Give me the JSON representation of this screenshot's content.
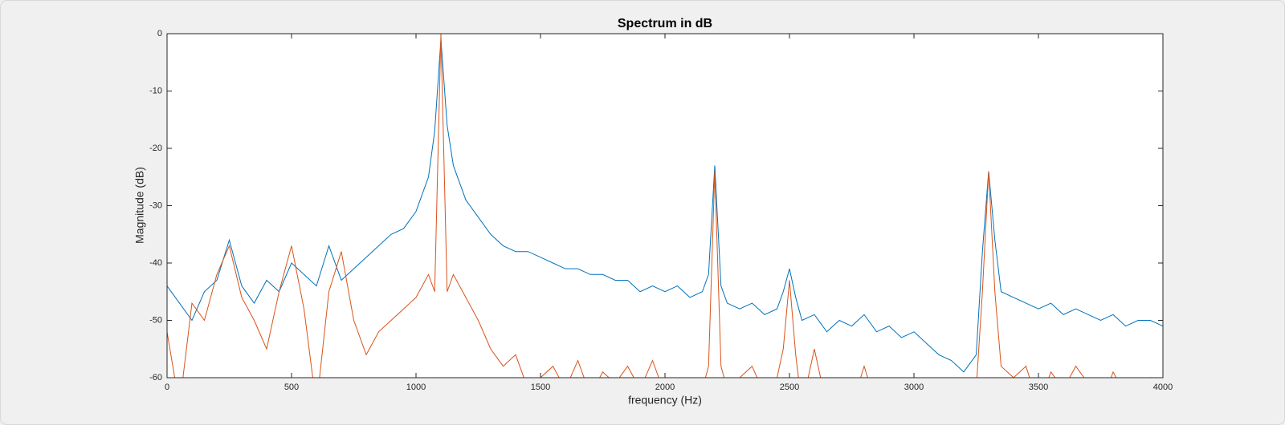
{
  "chart_data": {
    "type": "line",
    "title": "Spectrum in dB",
    "x_label": "frequency (Hz)",
    "y_label": "Magnitude (dB)",
    "x": [
      0,
      50,
      100,
      150,
      200,
      250,
      300,
      350,
      400,
      450,
      500,
      550,
      600,
      650,
      700,
      750,
      800,
      850,
      900,
      950,
      1000,
      1050,
      1075,
      1100,
      1125,
      1150,
      1200,
      1250,
      1300,
      1350,
      1400,
      1450,
      1500,
      1550,
      1600,
      1650,
      1700,
      1750,
      1800,
      1850,
      1900,
      1950,
      2000,
      2050,
      2100,
      2150,
      2175,
      2200,
      2225,
      2250,
      2300,
      2350,
      2400,
      2450,
      2475,
      2500,
      2525,
      2550,
      2600,
      2650,
      2700,
      2750,
      2800,
      2850,
      2900,
      2950,
      3000,
      3050,
      3100,
      3150,
      3200,
      3250,
      3275,
      3300,
      3325,
      3350,
      3400,
      3450,
      3500,
      3550,
      3600,
      3650,
      3700,
      3750,
      3800,
      3850,
      3900,
      3950,
      4000
    ],
    "series": [
      {
        "color": "#0072bd",
        "values": [
          -44,
          -47,
          -50,
          -45,
          -43,
          -36,
          -44,
          -47,
          -43,
          -45,
          -40,
          -42,
          -44,
          -37,
          -43,
          -41,
          -39,
          -37,
          -35,
          -34,
          -31,
          -25,
          -17,
          -1,
          -16,
          -23,
          -29,
          -32,
          -35,
          -37,
          -38,
          -38,
          -39,
          -40,
          -41,
          -41,
          -42,
          -42,
          -43,
          -43,
          -45,
          -44,
          -45,
          -44,
          -46,
          -45,
          -42,
          -23,
          -44,
          -47,
          -48,
          -47,
          -49,
          -48,
          -45,
          -41,
          -46,
          -50,
          -49,
          -52,
          -50,
          -51,
          -49,
          -52,
          -51,
          -53,
          -52,
          -54,
          -56,
          -57,
          -59,
          -56,
          -38,
          -24,
          -36,
          -45,
          -46,
          -47,
          -48,
          -47,
          -49,
          -48,
          -49,
          -50,
          -49,
          -51,
          -50,
          -50,
          -51
        ]
      },
      {
        "color": "#d95319",
        "values": [
          -52,
          -65,
          -47,
          -50,
          -42,
          -37,
          -46,
          -50,
          -55,
          -45,
          -37,
          -48,
          -65,
          -45,
          -38,
          -50,
          -56,
          -52,
          -50,
          -48,
          -46,
          -42,
          -45,
          0,
          -45,
          -42,
          -46,
          -50,
          -55,
          -58,
          -56,
          -62,
          -60,
          -58,
          -62,
          -57,
          -63,
          -59,
          -61,
          -58,
          -62,
          -57,
          -63,
          -65,
          -60,
          -62,
          -58,
          -24,
          -58,
          -62,
          -60,
          -58,
          -63,
          -60,
          -55,
          -43,
          -56,
          -65,
          -55,
          -65,
          -62,
          -65,
          -58,
          -65,
          -62,
          -65,
          -65,
          -62,
          -65,
          -65,
          -65,
          -62,
          -45,
          -24,
          -45,
          -58,
          -60,
          -58,
          -65,
          -59,
          -62,
          -58,
          -61,
          -65,
          -59,
          -63,
          -65,
          -60,
          -65
        ]
      }
    ],
    "xlim": [
      0,
      4000
    ],
    "xticks": [
      0,
      500,
      1000,
      1500,
      2000,
      2500,
      3000,
      3500,
      4000
    ],
    "ylim": [
      -60,
      0
    ],
    "yticks": [
      -60,
      -50,
      -40,
      -30,
      -20,
      -10,
      0
    ]
  }
}
